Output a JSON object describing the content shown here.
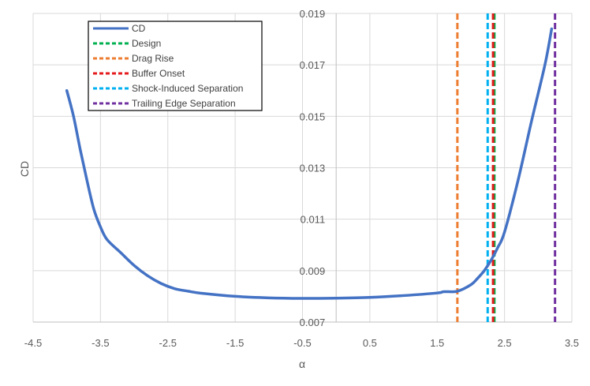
{
  "chart_data": {
    "type": "line",
    "title": "",
    "xlabel": "α",
    "ylabel": "CD",
    "xlim": [
      -4.5,
      3.5
    ],
    "ylim": [
      0.007,
      0.019
    ],
    "grid": true,
    "legend_position": "top-left",
    "x_tick_labels": [
      "-4.5",
      "-3.5",
      "-2.5",
      "-1.5",
      "-0.5",
      "0.5",
      "1.5",
      "2.5",
      "3.5"
    ],
    "y_tick_labels": [
      "0.007",
      "0.009",
      "0.011",
      "0.013",
      "0.015",
      "0.017",
      "0.019"
    ],
    "series": [
      {
        "name": "CD",
        "color": "#4472C4",
        "x": [
          -4.0,
          -3.9,
          -3.8,
          -3.7,
          -3.6,
          -3.5,
          -3.4,
          -3.2,
          -3.0,
          -2.8,
          -2.6,
          -2.4,
          -2.2,
          -2.0,
          -1.5,
          -1.0,
          -0.5,
          0.0,
          0.5,
          1.0,
          1.5,
          1.6,
          1.8,
          2.0,
          2.1,
          2.2,
          2.3,
          2.4,
          2.5,
          2.7,
          2.9,
          3.1,
          3.2
        ],
        "y": [
          0.016,
          0.015,
          0.0137,
          0.0125,
          0.0114,
          0.0107,
          0.0102,
          0.0097,
          0.0092,
          0.0088,
          0.0085,
          0.0083,
          0.0082,
          0.00812,
          0.008,
          0.00794,
          0.00792,
          0.00793,
          0.00796,
          0.00803,
          0.00813,
          0.00818,
          0.0082,
          0.00845,
          0.0087,
          0.009,
          0.0094,
          0.0099,
          0.0105,
          0.0125,
          0.0148,
          0.017,
          0.0184
        ]
      }
    ],
    "reference_lines": [
      {
        "name": "Design",
        "x": 2.35,
        "color": "#00B050"
      },
      {
        "name": "Drag Rise",
        "x": 1.8,
        "color": "#ED7D31"
      },
      {
        "name": "Buffer Onset",
        "x": 2.33,
        "color": "#E41A1C"
      },
      {
        "name": "Shock-Induced Separation",
        "x": 2.25,
        "color": "#00B0F0"
      },
      {
        "name": "Trailing Edge Separation",
        "x": 3.25,
        "color": "#7030A0"
      }
    ]
  }
}
